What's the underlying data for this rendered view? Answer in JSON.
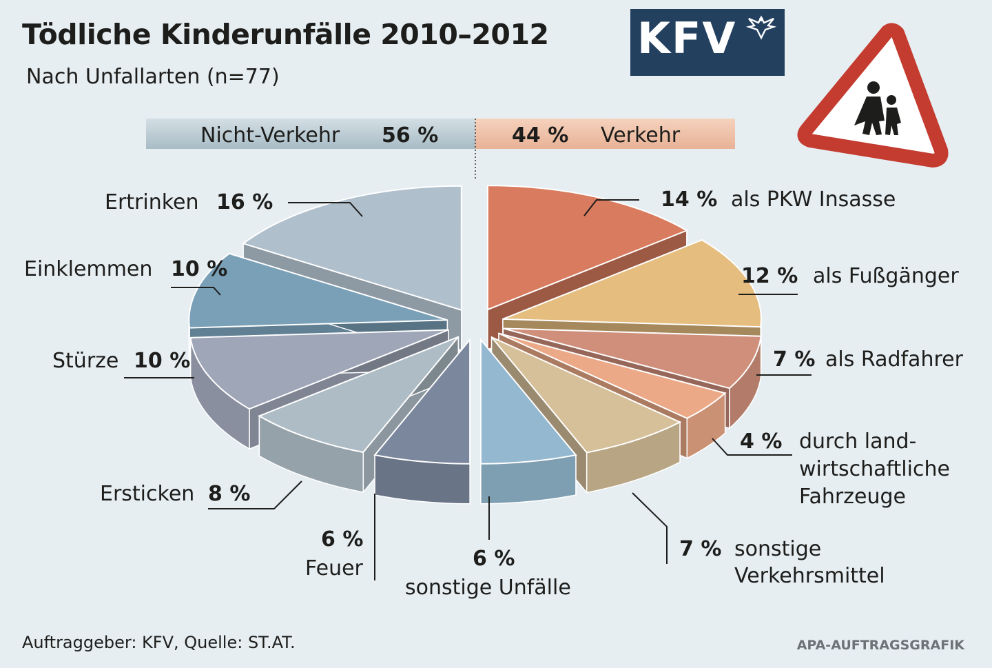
{
  "header": {
    "title": "Tödliche Kinderunfälle 2010–2012",
    "subtitle": "Nach Unfallarten (n=77)"
  },
  "logo": {
    "text": "KFV",
    "color": "#23405f"
  },
  "footer": {
    "source": "Auftraggeber: KFV, Quelle: ST.AT.",
    "credit": "APA-AUFTRAGSGRAFIK"
  },
  "chart_data": {
    "type": "pie",
    "variant": "exploded-3d",
    "summary_bar": [
      {
        "label": "Nicht-Verkehr",
        "value": 56,
        "display": "56 %",
        "color": "#b9c9d1"
      },
      {
        "label": "Verkehr",
        "value": 44,
        "display": "44 %",
        "color": "#f0c4ac"
      }
    ],
    "slices": [
      {
        "group": "Verkehr",
        "label": "als PKW Insasse",
        "value": 14,
        "display": "14 %",
        "color": "#d97b5e"
      },
      {
        "group": "Verkehr",
        "label": "als Fußgänger",
        "value": 12,
        "display": "12 %",
        "color": "#e5bd7f"
      },
      {
        "group": "Verkehr",
        "label": "als Radfahrer",
        "value": 7,
        "display": "7 %",
        "color": "#d08f7b"
      },
      {
        "group": "Verkehr",
        "label": "durch land-wirtschaftliche Fahrzeuge",
        "lines": [
          "durch land-",
          "wirtschaftliche",
          "Fahrzeuge"
        ],
        "value": 4,
        "display": "4 %",
        "color": "#eca987"
      },
      {
        "group": "Verkehr",
        "label": "sonstige Verkehrsmittel",
        "lines": [
          "sonstige",
          "Verkehrsmittel"
        ],
        "value": 7,
        "display": "7 %",
        "color": "#d6c09a"
      },
      {
        "group": "Nicht-Verkehr",
        "label": "sonstige Unfälle",
        "value": 6,
        "display": "6 %",
        "color": "#93b8cf"
      },
      {
        "group": "Nicht-Verkehr",
        "label": "Feuer",
        "value": 6,
        "display": "6 %",
        "color": "#7a879c"
      },
      {
        "group": "Nicht-Verkehr",
        "label": "Ersticken",
        "value": 8,
        "display": "8 %",
        "color": "#aebcc5"
      },
      {
        "group": "Nicht-Verkehr",
        "label": "Stürze",
        "value": 10,
        "display": "10 %",
        "color": "#9fa6b8"
      },
      {
        "group": "Nicht-Verkehr",
        "label": "Einklemmen",
        "value": 10,
        "display": "10 %",
        "color": "#7aa0b8"
      },
      {
        "group": "Nicht-Verkehr",
        "label": "Ertrinken",
        "value": 16,
        "display": "16 %",
        "color": "#b0bfcc"
      }
    ]
  }
}
